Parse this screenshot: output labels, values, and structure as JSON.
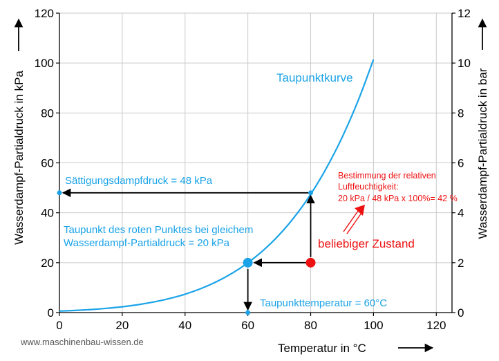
{
  "chart_data": {
    "type": "line",
    "xlabel": "Temperatur in °C",
    "ylabel_left": "Wasserdampf-Partialdruck in kPa",
    "ylabel_right": "Wasserdampf-Partialdruck in bar",
    "xlim": [
      0,
      125
    ],
    "ylim": [
      0,
      120
    ],
    "ylim_right": [
      0,
      12
    ],
    "x_ticks": [
      0,
      20,
      40,
      60,
      80,
      100,
      120
    ],
    "y_ticks": [
      0,
      20,
      40,
      60,
      80,
      100,
      120
    ],
    "y_ticks_right": [
      0,
      2,
      4,
      6,
      8,
      10,
      12
    ],
    "grid": true,
    "series": [
      {
        "name": "Taupunktkurve",
        "color": "#1aa3e8",
        "x": [
          0,
          5,
          10,
          15,
          20,
          25,
          30,
          35,
          40,
          45,
          50,
          55,
          60,
          65,
          70,
          75,
          80,
          85,
          90,
          95,
          100
        ],
        "y": [
          0.61,
          0.87,
          1.23,
          1.71,
          2.34,
          3.17,
          4.25,
          5.63,
          7.38,
          9.59,
          12.35,
          15.76,
          19.95,
          25.04,
          31.2,
          38.6,
          47.4,
          57.9,
          70.2,
          84.6,
          101.4
        ]
      }
    ],
    "points": [
      {
        "x": 80,
        "y": 20,
        "color": "#ee1111"
      },
      {
        "x": 60,
        "y": 20,
        "color": "#1aa3e8"
      },
      {
        "x": 80,
        "y": 48,
        "color": "#1aa3e8"
      },
      {
        "x": 0,
        "y": 48,
        "color": "#1aa3e8"
      },
      {
        "x": 60,
        "y": 0,
        "color": "#1aa3e8"
      }
    ],
    "annotations": {
      "curve_label": "Taupunktkurve",
      "saturation": "Sättigungsdampfdruck = 48 kPa",
      "dewpoint_line1": "Taupunkt des roten Punktes bei gleichem",
      "dewpoint_line2": "Wasserdampf-Partialdruck = 20 kPa",
      "dewpoint_temp": "Taupunkttemperatur = 60°C",
      "state": "beliebiger Zustand",
      "rh_line1": "Bestimmung der relativen",
      "rh_line2": "Luftfeuchtigkeit:",
      "rh_line3": "20 kPa / 48 kPa x 100%= 42 %"
    },
    "credit": "www.maschinenbau-wissen.de"
  }
}
